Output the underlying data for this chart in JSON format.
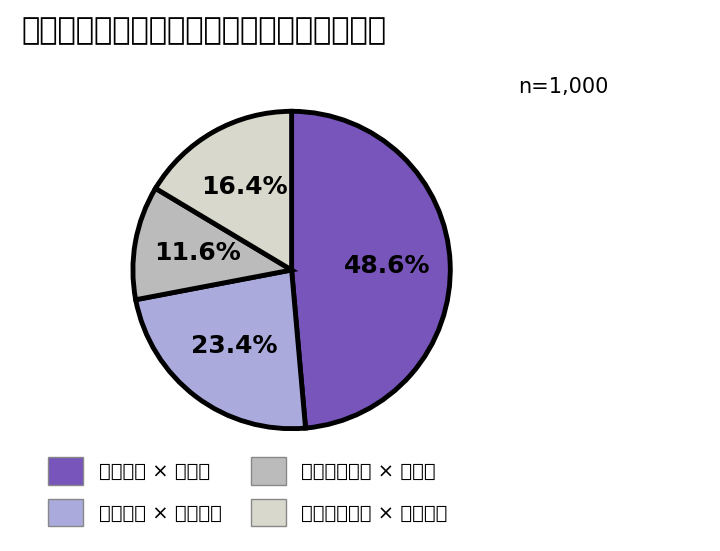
{
  "title": "かぜをひいたら休みたいか、休める環境か？",
  "n_label": "n=1,000",
  "slices": [
    48.6,
    23.4,
    11.6,
    16.4
  ],
  "labels": [
    "48.6%",
    "23.4%",
    "11.6%",
    "16.4%"
  ],
  "colors": [
    "#7755bb",
    "#aaaadd",
    "#bbbbbb",
    "#d8d8cc"
  ],
  "legend_labels": [
    "休みたい × 休める",
    "休みたい × 休めない",
    "休みたくない × 休める",
    "休みたくない × 休めない"
  ],
  "startangle": 90,
  "background_color": "#ffffff",
  "title_fontsize": 22,
  "label_fontsize": 18,
  "legend_fontsize": 14,
  "n_fontsize": 15
}
